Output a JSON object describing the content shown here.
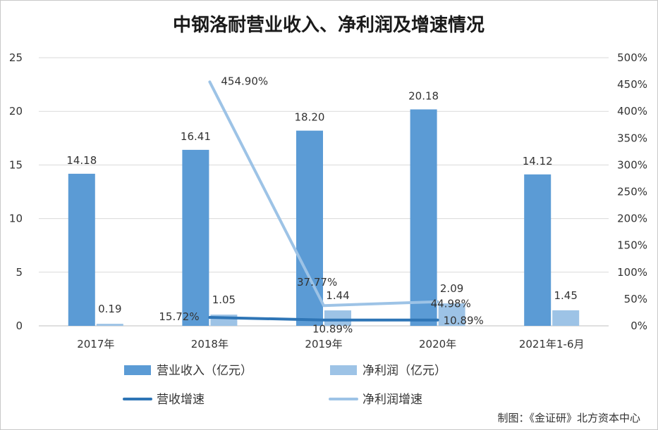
{
  "chart_data": {
    "type": "bar",
    "title": "中钢洛耐营业收入、净利润及增速情况",
    "categories": [
      "2017年",
      "2018年",
      "2019年",
      "2020年",
      "2021年1-6月"
    ],
    "y_left": {
      "ticks": [
        "0",
        "5",
        "10",
        "15",
        "20",
        "25"
      ],
      "ylim": [
        0,
        25
      ]
    },
    "y_right": {
      "ticks": [
        "0%",
        "50%",
        "100%",
        "150%",
        "200%",
        "250%",
        "300%",
        "350%",
        "400%",
        "450%",
        "500%"
      ],
      "ylim": [
        0,
        500
      ]
    },
    "series": [
      {
        "name": "营业收入（亿元）",
        "kind": "bar",
        "axis": "left",
        "color": "#5B9BD5",
        "values": [
          14.18,
          16.41,
          18.2,
          20.18,
          14.12
        ],
        "labels": [
          "14.18",
          "16.41",
          "18.20",
          "20.18",
          "14.12"
        ]
      },
      {
        "name": "净利润（亿元）",
        "kind": "bar",
        "axis": "left",
        "color": "#9DC3E6",
        "values": [
          0.19,
          1.05,
          1.44,
          2.09,
          1.45
        ],
        "labels": [
          "0.19",
          "1.05",
          "1.44",
          "2.09",
          "1.45"
        ]
      },
      {
        "name": "营收增速",
        "kind": "line",
        "axis": "right",
        "color": "#2E75B6",
        "values": [
          null,
          15.72,
          10.89,
          10.89,
          null
        ],
        "labels": [
          null,
          "15.72%",
          "10.89%",
          "10.89%",
          null
        ]
      },
      {
        "name": "净利润增速",
        "kind": "line",
        "axis": "right",
        "color": "#9DC3E6",
        "values": [
          null,
          454.9,
          37.77,
          44.98,
          null
        ],
        "labels": [
          null,
          "454.90%",
          "37.77%",
          "44.98%",
          null
        ]
      }
    ],
    "grid": true,
    "legend": "bottom"
  },
  "footer": {
    "credit": "制图：《金证研》北方资本中心"
  }
}
